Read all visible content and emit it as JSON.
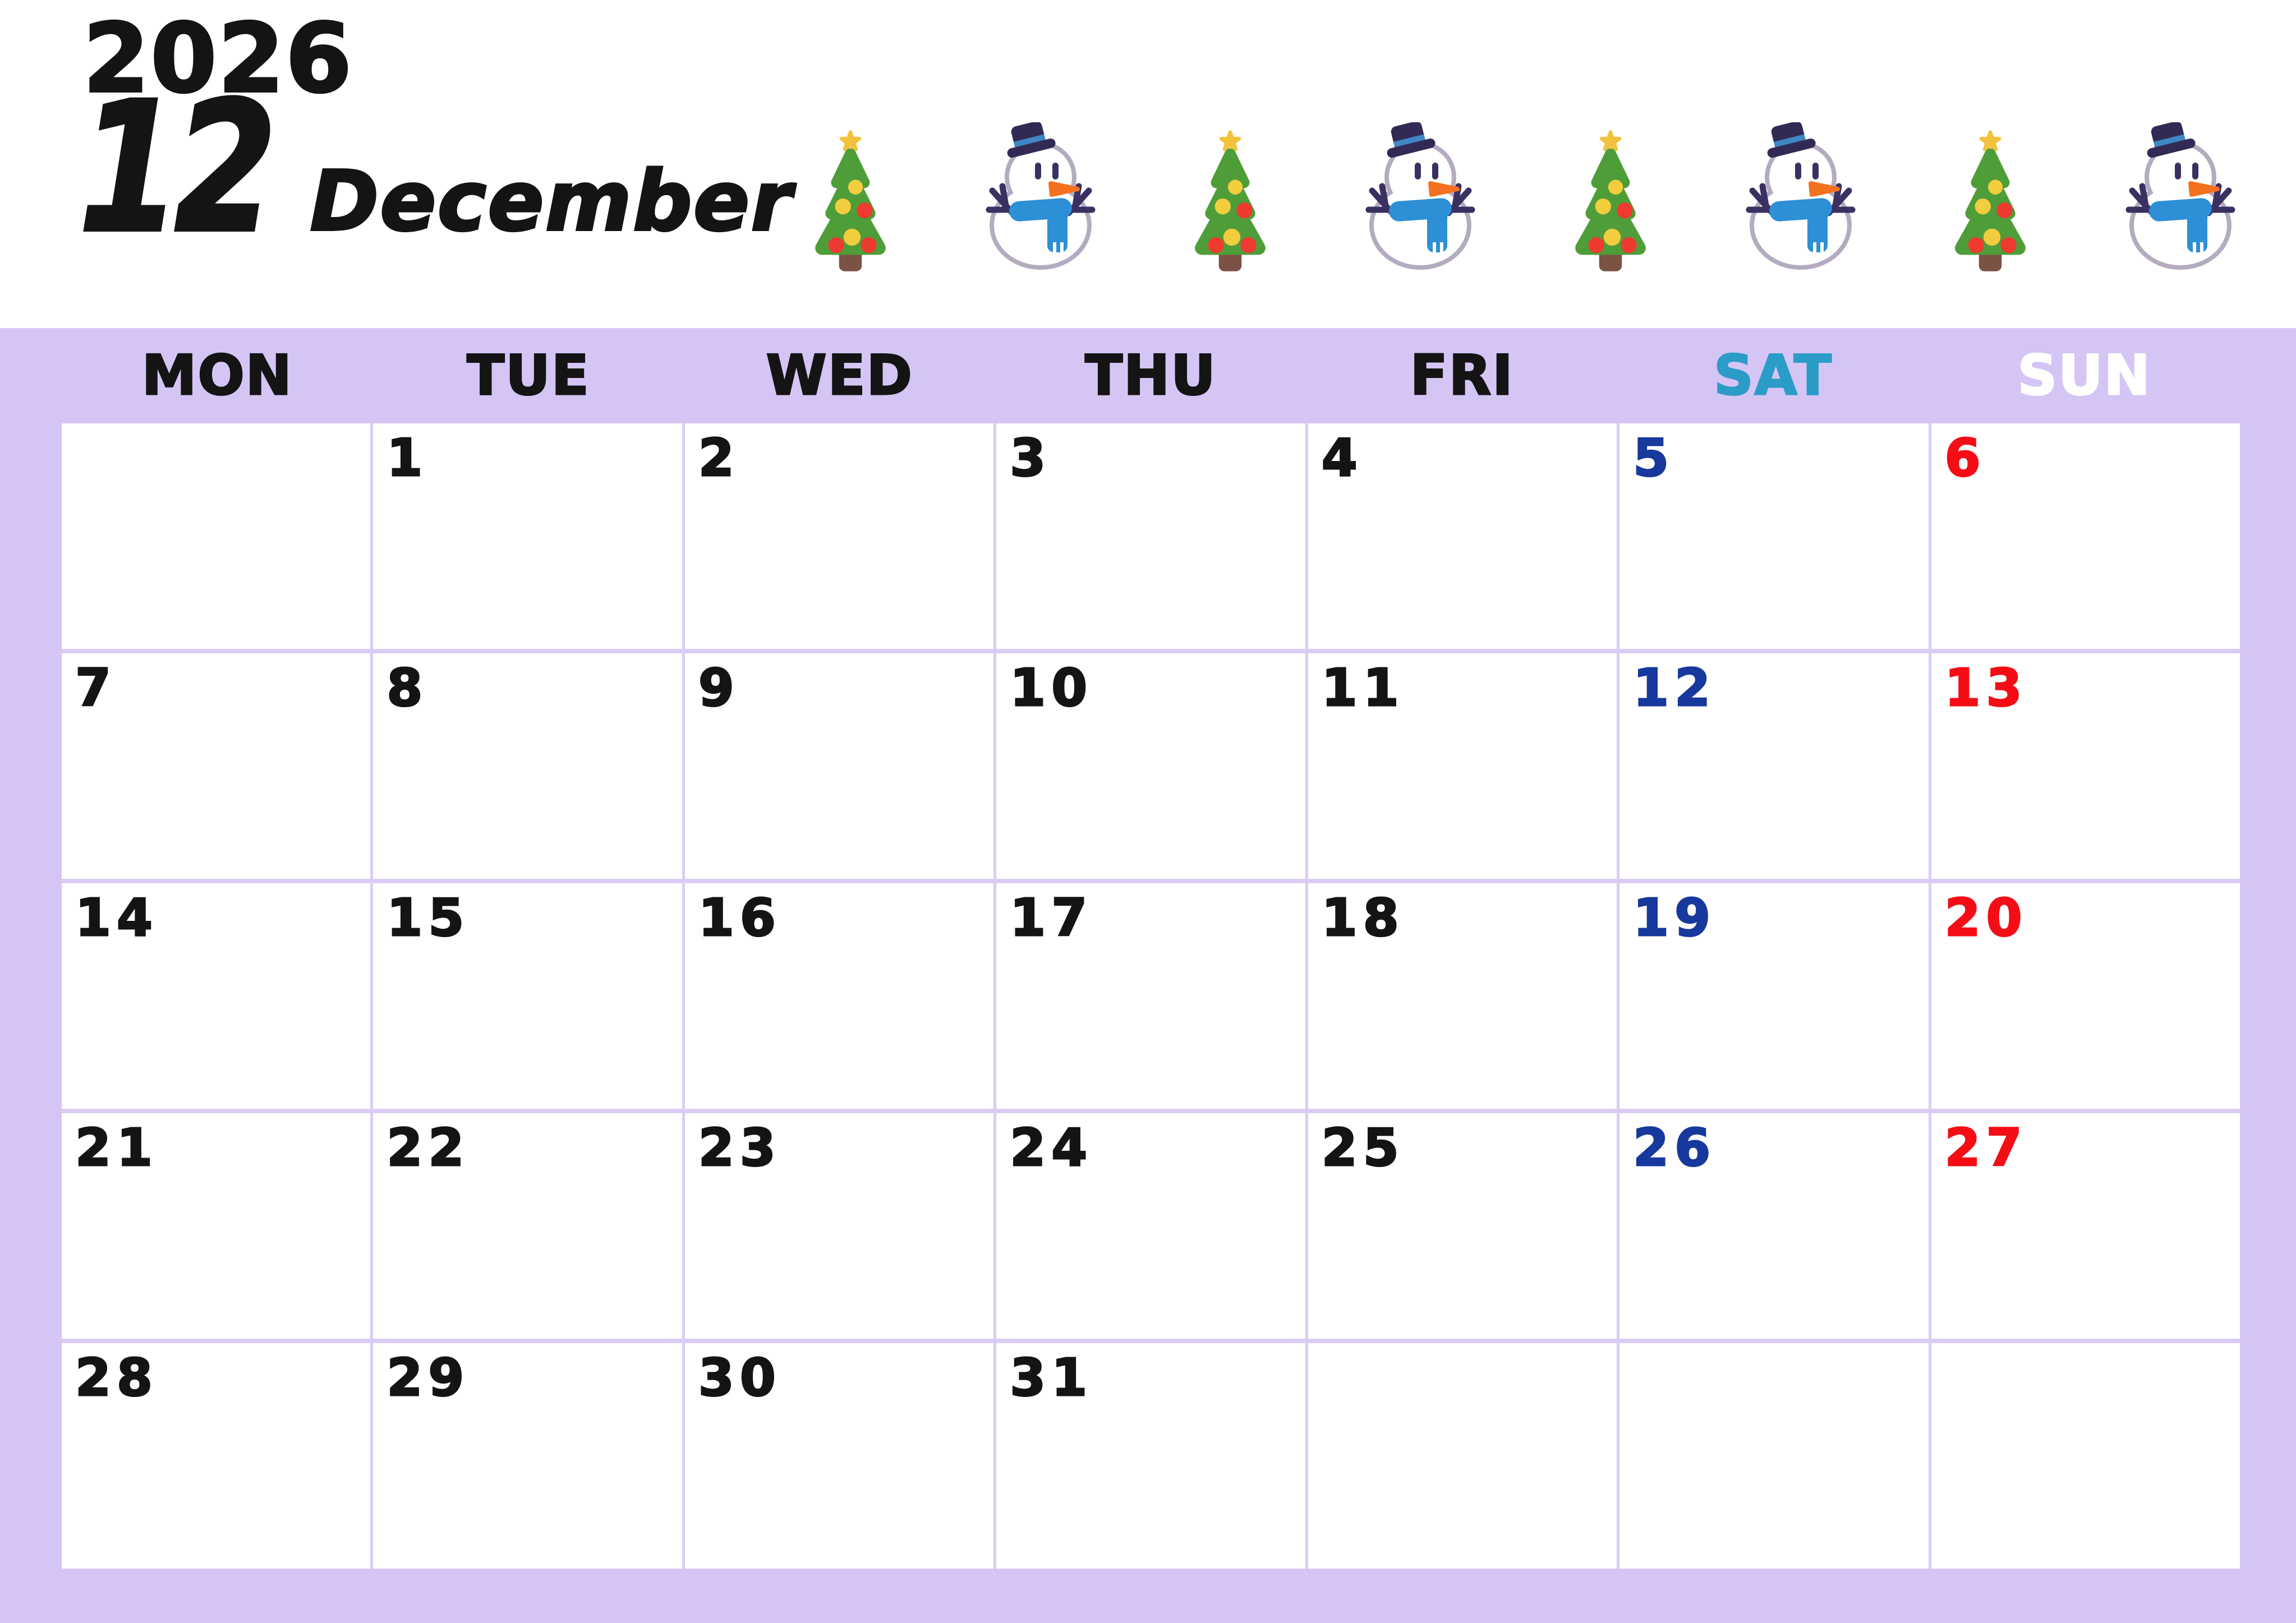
{
  "title": {
    "year": "2026",
    "month_number": "12",
    "month_name": "December"
  },
  "decorations": {
    "icons": [
      "christmas-tree-icon",
      "snowman-icon",
      "christmas-tree-icon",
      "snowman-icon",
      "christmas-tree-icon",
      "snowman-icon",
      "christmas-tree-icon",
      "snowman-icon"
    ]
  },
  "weekday_headers": [
    {
      "label": "MON",
      "color": "#141414"
    },
    {
      "label": "TUE",
      "color": "#141414"
    },
    {
      "label": "WED",
      "color": "#141414"
    },
    {
      "label": "THU",
      "color": "#141414"
    },
    {
      "label": "FRI",
      "color": "#141414"
    },
    {
      "label": "SAT",
      "color": "#2b9cc7"
    },
    {
      "label": "SUN",
      "color": "#ffffff"
    }
  ],
  "weeks": [
    [
      "",
      "1",
      "2",
      "3",
      "4",
      "5",
      "6"
    ],
    [
      "7",
      "8",
      "9",
      "10",
      "11",
      "12",
      "13"
    ],
    [
      "14",
      "15",
      "16",
      "17",
      "18",
      "19",
      "20"
    ],
    [
      "21",
      "22",
      "23",
      "24",
      "25",
      "26",
      "27"
    ],
    [
      "28",
      "29",
      "30",
      "31",
      "",
      "",
      ""
    ]
  ],
  "colors": {
    "background": "#ffffff",
    "panel_lavender": "#d5c5f5",
    "gridline": "#dbccf5",
    "date_default": "#141414",
    "saturday_date": "#17389c",
    "sunday_date": "#f50d16",
    "saturday_header": "#2b9cc7",
    "sunday_header": "#ffffff"
  },
  "icon_colors": {
    "tree_green": "#4f9d38",
    "trunk_brown": "#7b5243",
    "star_gold": "#f2c23d",
    "ornament_yellow": "#f2cd3e",
    "ornament_red": "#ee3a30",
    "snow_outline": "#b5abc0",
    "snow_navy": "#3a3162",
    "hat_navy": "#322a54",
    "hat_band_blue": "#3e87c4",
    "scarf_blue": "#2d8fd5",
    "nose_orange": "#f4711f"
  }
}
